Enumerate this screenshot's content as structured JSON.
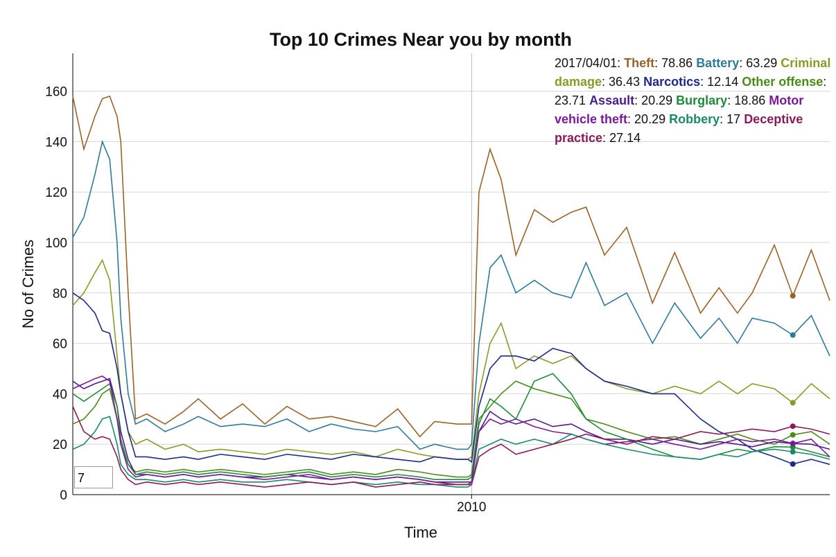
{
  "chart_data": {
    "type": "line",
    "title": "Top 10 Crimes Near you by month",
    "x_label": "Time",
    "y_label": "No of Crimes",
    "x": [
      "2001/01/01",
      "2001/04/01",
      "2001/07/01",
      "2001/09/01",
      "2001/11/01",
      "2002/01/01",
      "2002/02/01",
      "2002/04/01",
      "2002/06/01",
      "2002/09/01",
      "2003/02/01",
      "2003/07/01",
      "2003/11/01",
      "2004/05/01",
      "2004/11/01",
      "2005/05/01",
      "2005/11/01",
      "2006/05/01",
      "2006/11/01",
      "2007/05/01",
      "2007/11/01",
      "2008/05/01",
      "2008/11/01",
      "2009/03/01",
      "2009/09/01",
      "2009/12/01",
      "2010/01/01",
      "2010/03/01",
      "2010/06/01",
      "2010/09/01",
      "2011/01/01",
      "2011/06/01",
      "2011/11/01",
      "2012/04/01",
      "2012/08/01",
      "2013/01/01",
      "2013/07/01",
      "2014/02/01",
      "2014/08/01",
      "2015/03/01",
      "2015/08/01",
      "2016/01/01",
      "2016/05/01",
      "2016/11/01",
      "2017/04/01",
      "2017/09/01",
      "2018/02/01"
    ],
    "xlim": [
      "2001/01/01",
      "2018/02/01"
    ],
    "xticks": [
      {
        "value": "2010/01/01",
        "label": "2010"
      }
    ],
    "ylim": [
      0,
      175
    ],
    "yticks": [
      0,
      20,
      40,
      60,
      80,
      100,
      120,
      140,
      160
    ],
    "grid": true,
    "highlight_index": 44,
    "roll_period": 7,
    "series": [
      {
        "name": "Theft",
        "color": "#9a6228",
        "values": [
          158,
          137,
          150,
          157,
          158,
          150,
          140,
          80,
          30,
          32,
          28,
          33,
          38,
          30,
          36,
          28,
          35,
          30,
          31,
          29,
          27,
          34,
          23,
          29,
          28,
          28,
          28,
          120,
          137,
          125,
          95,
          113,
          108,
          112,
          114,
          95,
          106,
          76,
          96,
          72,
          82,
          72,
          80,
          99,
          78.86,
          97,
          77
        ]
      },
      {
        "name": "Battery",
        "color": "#2e7a98",
        "values": [
          102,
          110,
          127,
          140,
          133,
          100,
          70,
          40,
          28,
          30,
          25,
          28,
          31,
          27,
          28,
          27,
          30,
          25,
          28,
          26,
          25,
          27,
          18,
          20,
          18,
          18,
          20,
          60,
          90,
          95,
          80,
          85,
          80,
          78,
          92,
          75,
          80,
          60,
          76,
          62,
          70,
          60,
          70,
          68,
          63.29,
          71,
          55
        ]
      },
      {
        "name": "Criminal damage",
        "color": "#8a9a2a",
        "values": [
          75,
          80,
          88,
          93,
          85,
          55,
          40,
          25,
          20,
          22,
          18,
          20,
          17,
          18,
          17,
          16,
          18,
          17,
          16,
          17,
          15,
          18,
          16,
          15,
          14,
          14,
          15,
          40,
          60,
          68,
          50,
          55,
          52,
          55,
          50,
          45,
          42,
          40,
          43,
          40,
          45,
          40,
          44,
          42,
          36.43,
          44,
          38
        ]
      },
      {
        "name": "Narcotics",
        "color": "#1c2a8c",
        "values": [
          80,
          77,
          72,
          65,
          64,
          50,
          40,
          25,
          15,
          15,
          14,
          15,
          14,
          16,
          15,
          14,
          16,
          15,
          14,
          16,
          15,
          14,
          13,
          15,
          14,
          14,
          13,
          35,
          50,
          55,
          55,
          53,
          58,
          56,
          50,
          45,
          43,
          40,
          40,
          30,
          25,
          22,
          18,
          15,
          12.14,
          14,
          12
        ]
      },
      {
        "name": "Other offense",
        "color": "#4a8a1a",
        "values": [
          28,
          30,
          35,
          40,
          42,
          30,
          20,
          12,
          9,
          10,
          9,
          10,
          9,
          10,
          9,
          8,
          9,
          10,
          8,
          9,
          8,
          10,
          9,
          8,
          7,
          7,
          8,
          30,
          35,
          40,
          45,
          42,
          40,
          38,
          30,
          28,
          25,
          22,
          23,
          20,
          22,
          24,
          22,
          20,
          23.71,
          25,
          20
        ]
      },
      {
        "name": "Assault",
        "color": "#4b1c8c",
        "values": [
          45,
          42,
          44,
          45,
          46,
          35,
          25,
          14,
          8,
          8,
          7,
          8,
          7,
          8,
          7,
          7,
          8,
          7,
          6,
          7,
          6,
          7,
          6,
          5,
          5,
          5,
          5,
          25,
          33,
          30,
          28,
          30,
          27,
          28,
          25,
          22,
          22,
          20,
          22,
          20,
          21,
          20,
          19,
          21,
          20.29,
          20,
          18
        ]
      },
      {
        "name": "Burglary",
        "color": "#1f8c3a",
        "values": [
          40,
          37,
          40,
          42,
          44,
          35,
          22,
          12,
          8,
          9,
          8,
          9,
          8,
          9,
          8,
          7,
          8,
          9,
          7,
          8,
          7,
          8,
          7,
          6,
          6,
          6,
          7,
          28,
          38,
          35,
          30,
          45,
          48,
          40,
          30,
          25,
          22,
          18,
          15,
          14,
          16,
          18,
          17,
          19,
          18.86,
          17,
          15
        ]
      },
      {
        "name": "Motor vehicle theft",
        "color": "#7a1a9a",
        "values": [
          42,
          44,
          46,
          47,
          45,
          30,
          20,
          10,
          7,
          8,
          7,
          8,
          7,
          8,
          7,
          6,
          7,
          8,
          6,
          7,
          6,
          7,
          6,
          5,
          4,
          4,
          5,
          25,
          30,
          28,
          30,
          27,
          25,
          24,
          22,
          20,
          21,
          22,
          20,
          18,
          20,
          22,
          21,
          22,
          20.29,
          22,
          15
        ]
      },
      {
        "name": "Robbery",
        "color": "#1a8a6a",
        "values": [
          18,
          20,
          25,
          30,
          31,
          20,
          12,
          8,
          6,
          6,
          5,
          6,
          5,
          6,
          5,
          5,
          6,
          5,
          4,
          5,
          4,
          5,
          4,
          4,
          3,
          3,
          4,
          18,
          20,
          22,
          20,
          22,
          20,
          24,
          22,
          20,
          18,
          16,
          15,
          14,
          16,
          15,
          17,
          18,
          17,
          16,
          14
        ]
      },
      {
        "name": "Deceptive practice",
        "color": "#8a1a5a",
        "values": [
          35,
          25,
          22,
          23,
          22,
          15,
          10,
          6,
          4,
          5,
          4,
          5,
          4,
          5,
          4,
          3,
          4,
          5,
          4,
          5,
          3,
          4,
          5,
          4,
          4,
          4,
          4,
          15,
          18,
          20,
          16,
          18,
          20,
          22,
          24,
          22,
          20,
          23,
          22,
          25,
          24,
          25,
          26,
          25,
          27.14,
          26,
          24
        ]
      }
    ]
  }
}
